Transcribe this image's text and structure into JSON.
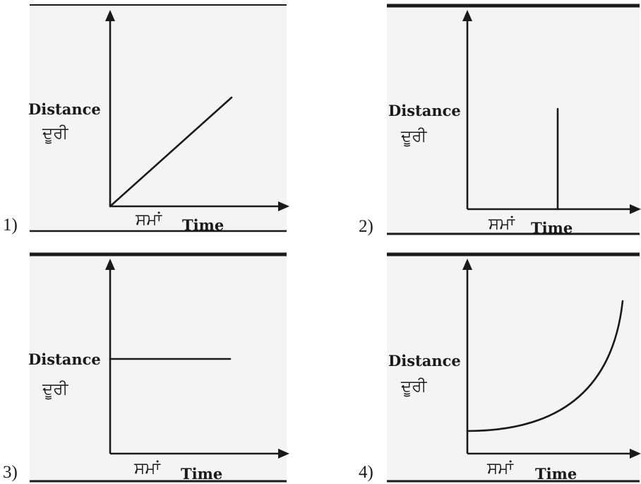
{
  "options": [
    {
      "number": "1)",
      "y_label_en": "Distance",
      "y_label_pa": "ਦੂਰੀ",
      "x_label_pa": "ਸਮਾਂ",
      "x_label_en": "Time",
      "graph": "straight line rising from origin"
    },
    {
      "number": "2)",
      "y_label_en": "Distance",
      "y_label_pa": "ਦੂਰੀ",
      "x_label_pa": "ਸਮਾਂ",
      "x_label_en": "Time",
      "graph": "vertical line"
    },
    {
      "number": "3)",
      "y_label_en": "Distance",
      "y_label_pa": "ਦੂਰੀ",
      "x_label_pa": "ਸਮਾਂ",
      "x_label_en": "Time",
      "graph": "horizontal line"
    },
    {
      "number": "4)",
      "y_label_en": "Distance",
      "y_label_pa": "ਦੂਰੀ",
      "x_label_pa": "ਸਮਾਂ",
      "x_label_en": "Time",
      "graph": "upward curve"
    }
  ]
}
